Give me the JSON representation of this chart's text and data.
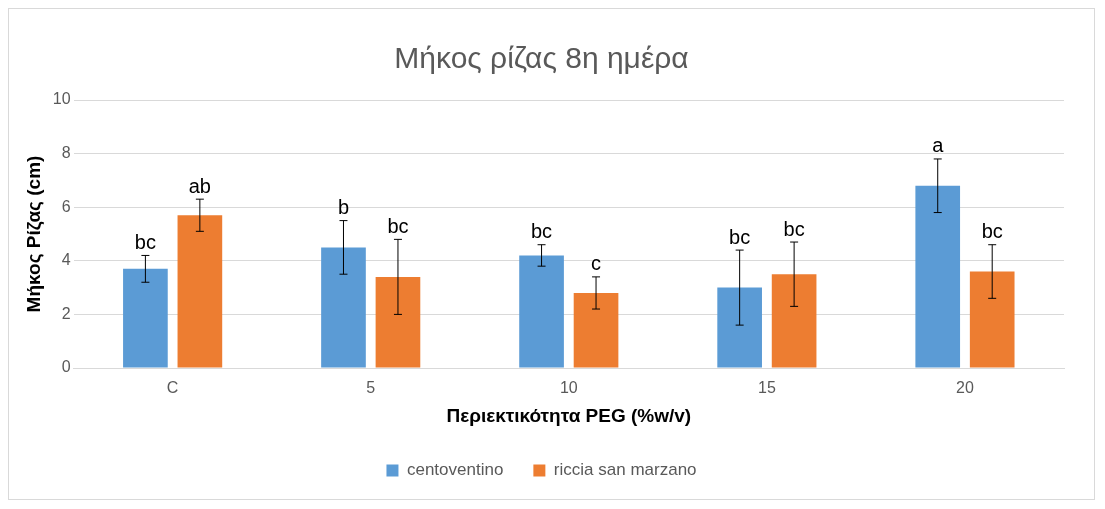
{
  "chart_data": {
    "type": "bar",
    "title": "Μήκος ρίζας 8η ημέρα",
    "xlabel": "Περιεκτικότητα PEG (%w/v)",
    "ylabel": "Μήκος Ρίζας (cm)",
    "categories": [
      "C",
      "5",
      "10",
      "15",
      "20"
    ],
    "series": [
      {
        "name": "centoventino",
        "color": "#5b9bd5",
        "values": [
          3.7,
          4.5,
          4.2,
          3.0,
          6.8
        ],
        "errors": [
          0.5,
          1.0,
          0.4,
          1.4,
          1.0
        ]
      },
      {
        "name": "riccia san marzano",
        "color": "#ed7d31",
        "values": [
          5.7,
          3.4,
          2.8,
          3.5,
          3.6
        ],
        "errors": [
          0.6,
          1.4,
          0.6,
          1.2,
          1.0
        ]
      }
    ],
    "ylim": [
      0,
      10
    ],
    "yticks": [
      0,
      2,
      4,
      6,
      8,
      10
    ],
    "grid": "y",
    "legend": "bottom",
    "annotations": [
      {
        "text": "bc",
        "x": "C",
        "y": 3.7
      },
      {
        "text": "ab",
        "x": "C",
        "y": 5.7
      },
      {
        "text": "b",
        "x": "5",
        "y": 4.5
      },
      {
        "text": "bc",
        "x": "5",
        "y": 3.4
      },
      {
        "text": "bc",
        "x": "10",
        "y": 4.2
      },
      {
        "text": "c",
        "x": "10",
        "y": 2.8
      },
      {
        "text": "bc",
        "x": "15",
        "y": 3.0
      },
      {
        "text": "bc",
        "x": "15",
        "y": 3.5
      },
      {
        "text": "a",
        "x": "20",
        "y": 6.8
      },
      {
        "text": "bc",
        "x": "20",
        "y": 3.6
      }
    ]
  }
}
